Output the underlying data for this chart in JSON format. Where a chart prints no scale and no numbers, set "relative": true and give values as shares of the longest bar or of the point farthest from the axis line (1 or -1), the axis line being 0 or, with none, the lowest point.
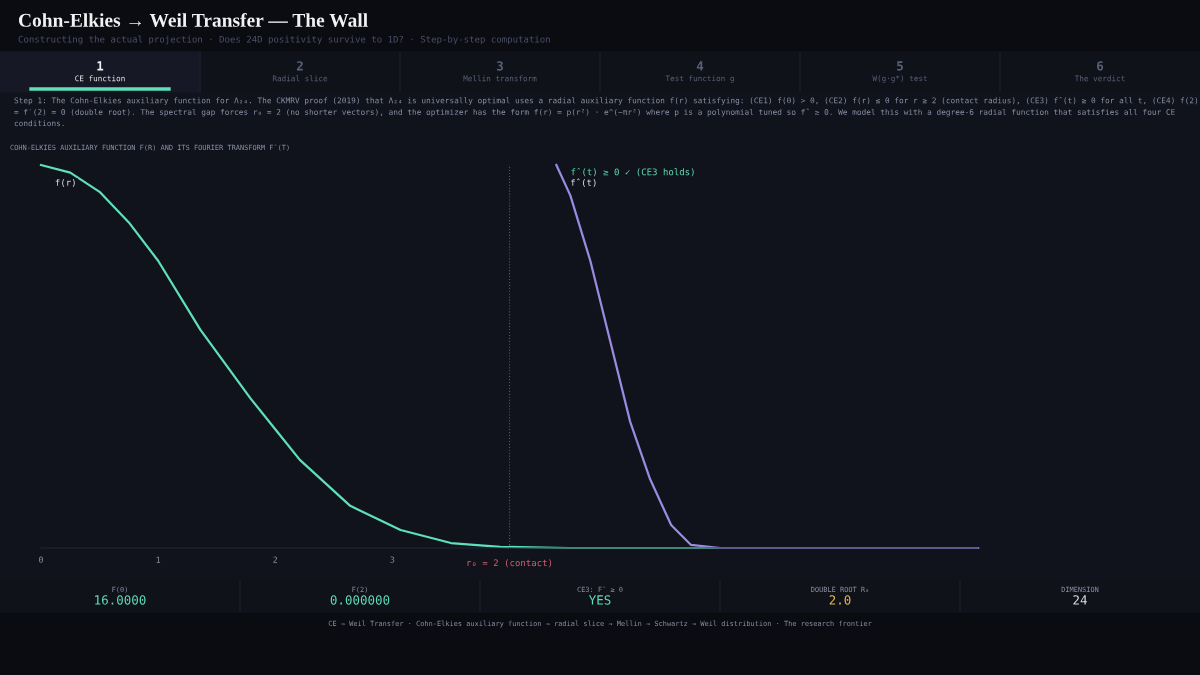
{
  "chart_data": {
    "type": "line",
    "title": "Cohn-Elkies → Weil Transfer — The Wall",
    "subtitle": "Constructing the actual projection · Does 24D positivity survive to 1D? · Step-by-step computation",
    "relative": true,
    "xlim": [
      0,
      8
    ],
    "xticks": [
      0,
      1,
      2,
      3
    ],
    "tick_labels": "x",
    "grid": false,
    "legend": false,
    "marker": "none",
    "line_style": "solid",
    "series": [
      {
        "name": "f(r)",
        "color": "#5ee0b8",
        "x": [
          0,
          0.25,
          0.5,
          0.75,
          1.0,
          1.36,
          1.79,
          2.0,
          2.21,
          2.64,
          3.07,
          3.5,
          3.92,
          4.5,
          6.0,
          8.0
        ],
        "values": [
          1,
          0.98,
          0.93,
          0.85,
          0.75,
          0.57,
          0.39,
          0.31,
          0.23,
          0.11,
          0.047,
          0.013,
          0.003,
          0,
          0,
          0
        ]
      },
      {
        "name": "f̂(t)",
        "color": "#9b8be0",
        "x": [
          4.4,
          4.52,
          4.69,
          4.86,
          5.03,
          5.2,
          5.38,
          5.55,
          5.8,
          7.0,
          8.0
        ],
        "values": [
          1,
          0.92,
          0.75,
          0.54,
          0.33,
          0.18,
          0.06,
          0.008,
          0,
          0,
          0
        ]
      }
    ],
    "ref_lines": [
      {
        "axis": "x",
        "value": 4.0,
        "color": "#d0606a",
        "line_style": "dotted"
      }
    ],
    "annotations": [
      "COHN-ELKIES AUXILIARY FUNCTION F(R) AND ITS FOURIER TRANSFORM F̂(T)",
      "Step 1: The Cohn-Elkies auxiliary function for Λ₂₄. The CKMRV proof (2019) that Λ₂₄ is universally optimal uses a radial auxiliary function f(r) satisfying: (CE1) f(0) > 0, (CE2) f(r) ≤ 0 for r ≥ 2 (contact radius), (CE3) f̂(t) ≥ 0 for all t, (CE4) f(2) = f′(2) = 0 (double root). The spectral gap forces r₀ = 2 (no shorter vectors), and the optimizer has the form f(r) = p(r²) · e^(−πr²) where p is a polynomial tuned so f̂ ≥ 0. We model this with a degree-6 radial function that satisfies all four CE conditions.",
      "1",
      "CE function",
      "2",
      "Radial slice",
      "3",
      "Mellin transform",
      "4",
      "Test function g",
      "5",
      "W(g·g*) test",
      "6",
      "The verdict",
      "F(0)",
      "16.0000",
      "F(2)",
      "0.000000",
      "CE3: F̂ ≥ 0",
      "YES",
      "DOUBLE ROOT R₀",
      "2.0",
      "DIMENSION",
      "24",
      "CE → Weil Transfer · Cohn-Elkies auxiliary function → radial slice → Mellin → Schwartz → Weil distribution · The research frontier",
      {
        "text": "f̂(t) ≥ 0 ✓ (CE3 holds)",
        "x": 4.45,
        "y": 0.98
      },
      "r₀ = 2 (contact)"
    ]
  }
}
